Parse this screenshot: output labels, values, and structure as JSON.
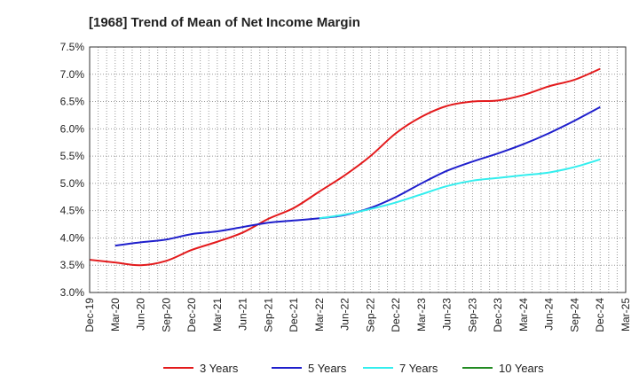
{
  "chart_data": {
    "type": "line",
    "title": "[1968]  Trend of Mean of Net Income Margin",
    "xlabel": "",
    "ylabel": "",
    "y_ticks": [
      "7.5%",
      "7.0%",
      "6.5%",
      "6.0%",
      "5.5%",
      "5.0%",
      "4.5%",
      "4.0%",
      "3.5%",
      "3.0%"
    ],
    "ylim": [
      3.0,
      7.5
    ],
    "x_ticks": [
      "Dec-19",
      "Mar-20",
      "Jun-20",
      "Sep-20",
      "Dec-20",
      "Mar-21",
      "Jun-21",
      "Sep-21",
      "Dec-21",
      "Mar-22",
      "Jun-22",
      "Sep-22",
      "Dec-22",
      "Mar-23",
      "Jun-23",
      "Sep-23",
      "Dec-23",
      "Mar-24",
      "Jun-24",
      "Sep-24",
      "Dec-24",
      "Mar-25"
    ],
    "grid": true,
    "legend_position": "bottom",
    "series": [
      {
        "name": "3 Years",
        "color": "#e31a1c",
        "start_index": 0,
        "values": [
          3.6,
          3.55,
          3.5,
          3.58,
          3.78,
          3.93,
          4.1,
          4.35,
          4.55,
          4.85,
          5.15,
          5.5,
          5.92,
          6.22,
          6.42,
          6.5,
          6.52,
          6.62,
          6.78,
          6.9,
          7.1
        ]
      },
      {
        "name": "5 Years",
        "color": "#1f1fcc",
        "start_index": 1,
        "values": [
          3.86,
          3.92,
          3.97,
          4.07,
          4.12,
          4.2,
          4.28,
          4.32,
          4.36,
          4.42,
          4.55,
          4.75,
          5.0,
          5.23,
          5.4,
          5.55,
          5.72,
          5.92,
          6.15,
          6.4
        ]
      },
      {
        "name": "7 Years",
        "color": "#33eeee",
        "start_index": 9,
        "values": [
          4.36,
          4.43,
          4.53,
          4.65,
          4.8,
          4.95,
          5.05,
          5.1,
          5.15,
          5.2,
          5.3,
          5.44
        ]
      },
      {
        "name": "10 Years",
        "color": "#228b22",
        "start_index": 0,
        "values": []
      }
    ]
  }
}
